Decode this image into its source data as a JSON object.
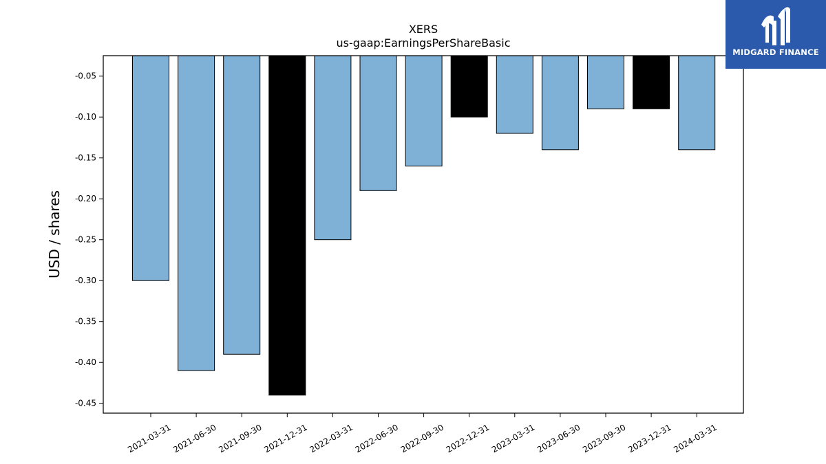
{
  "brand": {
    "name": "MIDGARD FINANCE",
    "background": "#2b5aad",
    "icon": "midgard-logo-icon"
  },
  "chart_data": {
    "type": "bar",
    "title": "XERS",
    "subtitle": "us-gaap:EarningsPerShareBasic",
    "xlabel": "",
    "ylabel": "USD / shares",
    "ylim": [
      -0.462,
      -0.025
    ],
    "yticks": [
      "-0.05",
      "-0.10",
      "-0.15",
      "-0.20",
      "-0.25",
      "-0.30",
      "-0.35",
      "-0.40",
      "-0.45"
    ],
    "ytick_values": [
      -0.05,
      -0.1,
      -0.15,
      -0.2,
      -0.25,
      -0.3,
      -0.35,
      -0.4,
      -0.45
    ],
    "grid": false,
    "categories": [
      "2021-03-31",
      "2021-06-30",
      "2021-09-30",
      "2021-12-31",
      "2022-03-31",
      "2022-06-30",
      "2022-09-30",
      "2022-12-31",
      "2023-03-31",
      "2023-06-30",
      "2023-09-30",
      "2023-12-31",
      "2024-03-31"
    ],
    "values": [
      -0.3,
      -0.41,
      -0.39,
      -0.44,
      -0.25,
      -0.19,
      -0.16,
      -0.1,
      -0.12,
      -0.14,
      -0.09,
      -0.09,
      -0.14
    ],
    "bar_colors": [
      "#7fb0d5",
      "#7fb0d5",
      "#7fb0d5",
      "#000000",
      "#7fb0d5",
      "#7fb0d5",
      "#7fb0d5",
      "#000000",
      "#7fb0d5",
      "#7fb0d5",
      "#7fb0d5",
      "#000000",
      "#7fb0d5"
    ]
  }
}
